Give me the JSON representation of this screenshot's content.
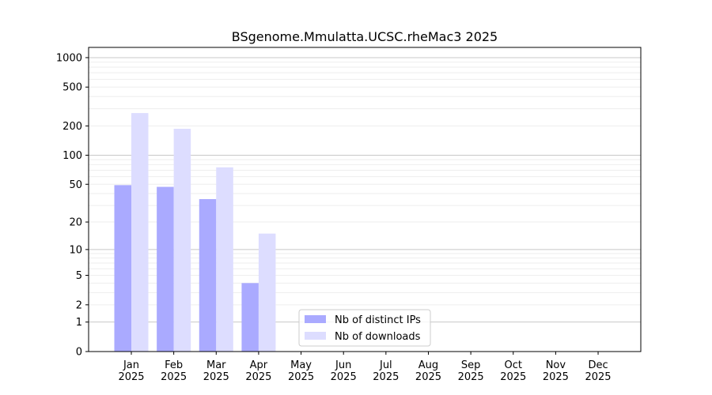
{
  "chart_data": {
    "type": "bar",
    "title": "BSgenome.Mmulatta.UCSC.rheMac3 2025",
    "xlabel": "",
    "ylabel": "",
    "yscale": "log(1+y)",
    "ylim": [
      0,
      1300
    ],
    "yticks": [
      0,
      1,
      2,
      5,
      10,
      20,
      50,
      100,
      200,
      500,
      1000
    ],
    "categories": [
      "Jan\n2025",
      "Feb\n2025",
      "Mar\n2025",
      "Apr\n2025",
      "May\n2025",
      "Jun\n2025",
      "Jul\n2025",
      "Aug\n2025",
      "Sep\n2025",
      "Oct\n2025",
      "Nov\n2025",
      "Dec\n2025"
    ],
    "series": [
      {
        "name": "Nb of distinct IPs",
        "color": "#aaaaff",
        "values": [
          49,
          47,
          35,
          4,
          0,
          0,
          0,
          0,
          0,
          0,
          0,
          0
        ]
      },
      {
        "name": "Nb of downloads",
        "color": "#ddddff",
        "values": [
          271,
          187,
          75,
          15,
          0,
          0,
          0,
          0,
          0,
          0,
          0,
          0
        ]
      }
    ],
    "grid": true,
    "legend": "lower-center"
  }
}
